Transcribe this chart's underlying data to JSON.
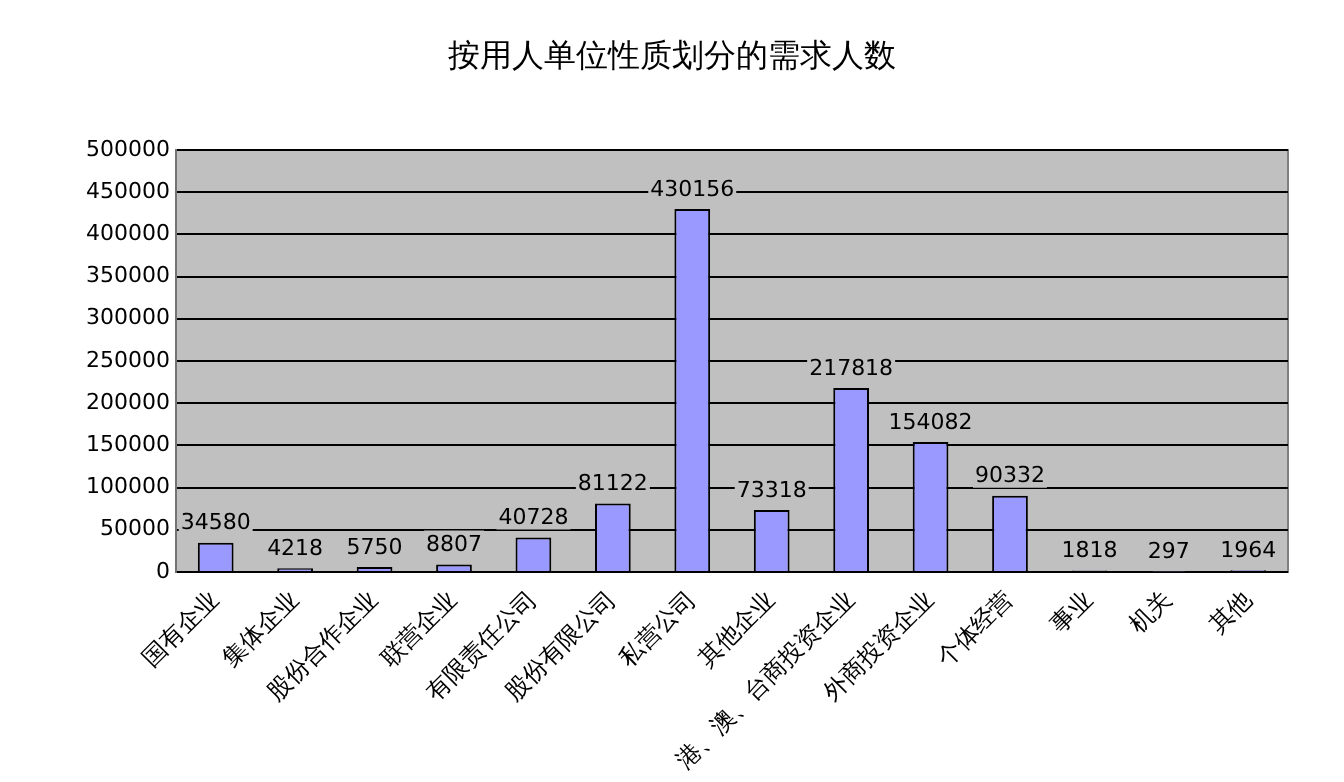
{
  "chart_data": {
    "type": "bar",
    "title": "按用人单位性质划分的需求人数",
    "categories": [
      "国有企业",
      "集体企业",
      "股份合作企业",
      "联营企业",
      "有限责任公司",
      "股份有限公司",
      "私营公司",
      "其他企业",
      "港、澳、台商投资企业",
      "外商投资企业",
      "个体经营",
      "事业",
      "机关",
      "其他"
    ],
    "values": [
      34580,
      4218,
      5750,
      8807,
      40728,
      81122,
      430156,
      73318,
      217818,
      154082,
      90332,
      1818,
      297,
      1964
    ],
    "color": "#9999ff",
    "ylim": [
      0,
      500000
    ],
    "yticks": [
      0,
      50000,
      100000,
      150000,
      200000,
      250000,
      300000,
      350000,
      400000,
      450000,
      500000
    ],
    "grid": "y",
    "data_labels": true,
    "legend": false
  }
}
